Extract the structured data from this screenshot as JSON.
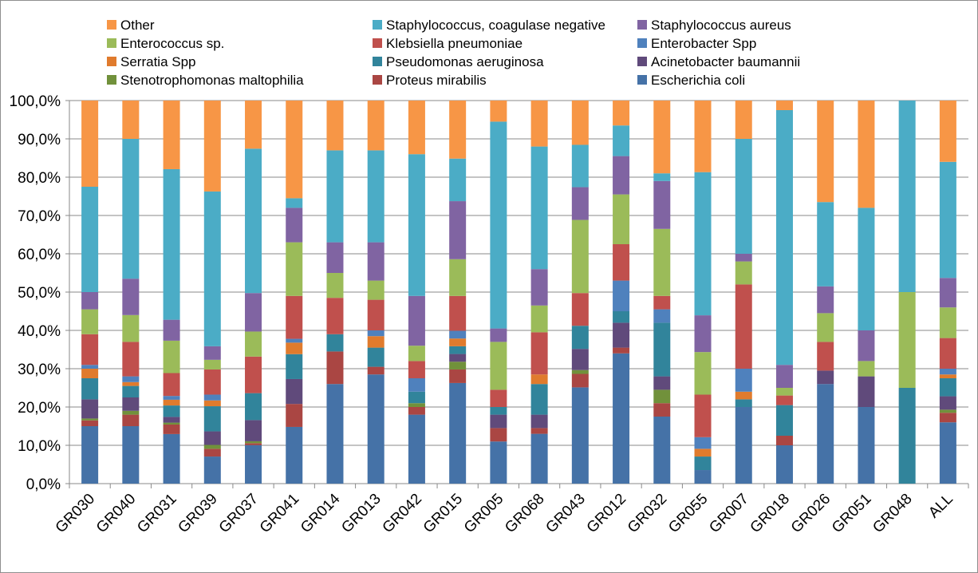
{
  "chart_data": {
    "type": "bar",
    "stacked": true,
    "percent": true,
    "title": "",
    "xlabel": "",
    "ylabel": "",
    "ylim": [
      0,
      100
    ],
    "y_ticks": [
      "0,0%",
      "10,0%",
      "20,0%",
      "30,0%",
      "40,0%",
      "50,0%",
      "60,0%",
      "70,0%",
      "80,0%",
      "90,0%",
      "100,0%"
    ],
    "grid": "horizontal",
    "legend_position": "top",
    "categories": [
      "GR030",
      "GR040",
      "GR031",
      "GR039",
      "GR037",
      "GR041",
      "GR014",
      "GR013",
      "GR042",
      "GR015",
      "GR005",
      "GR068",
      "GR043",
      "GR012",
      "GR032",
      "GR055",
      "GR007",
      "GR018",
      "GR026",
      "GR051",
      "GR048",
      "ALL"
    ],
    "legend_order": [
      "Other",
      "Staphylococcus, coagulase negative",
      "Staphylococcus aureus",
      "Enterococcus sp.",
      "Klebsiella pneumoniae",
      "Enterobacter Spp",
      "Serratia Spp",
      "Pseudomonas aeruginosa",
      "Acinetobacter baumannii",
      "Stenotrophomonas maltophilia",
      "Proteus mirabilis",
      "Escherichia coli"
    ],
    "series": [
      {
        "name": "Escherichia coli",
        "color": "#4572A7",
        "values": [
          15.0,
          15.0,
          13.0,
          7.0,
          10.0,
          14.8,
          26.0,
          28.5,
          18.0,
          26.0,
          11.0,
          13.0,
          25.0,
          34.0,
          17.5,
          3.5,
          20.0,
          10.0,
          26.0,
          20.0,
          0,
          16.0
        ]
      },
      {
        "name": "Proteus mirabilis",
        "color": "#AA4643",
        "values": [
          1.5,
          3.0,
          2.5,
          2.0,
          0.5,
          6.0,
          8.5,
          2.0,
          2.0,
          3.5,
          3.5,
          1.5,
          3.5,
          1.5,
          3.5,
          0,
          0,
          2.5,
          0,
          0,
          0,
          2.5
        ]
      },
      {
        "name": "Stenotrophomonas maltophilia",
        "color": "#71913B",
        "values": [
          0.5,
          1.0,
          0.5,
          1.0,
          0.5,
          0,
          0,
          0,
          1.0,
          2.0,
          0,
          0,
          1.0,
          0,
          3.5,
          0,
          0,
          0,
          0,
          0,
          0,
          0.8
        ]
      },
      {
        "name": "Acinetobacter baumannii",
        "color": "#604A7B",
        "values": [
          5.0,
          3.5,
          1.5,
          3.5,
          5.5,
          6.5,
          0,
          0,
          0,
          2.0,
          3.5,
          3.5,
          5.5,
          6.5,
          3.5,
          0,
          0,
          0,
          3.5,
          8.0,
          0,
          3.5
        ]
      },
      {
        "name": "Pseudomonas aeruginosa",
        "color": "#31849B",
        "values": [
          5.5,
          3.0,
          3.0,
          6.5,
          7.0,
          6.5,
          4.5,
          5.0,
          3.0,
          2.0,
          2.0,
          8.0,
          6.0,
          3.0,
          14.0,
          3.5,
          2.0,
          8.0,
          0,
          0,
          25.0,
          4.7
        ]
      },
      {
        "name": "Serratia Spp",
        "color": "#E07B2D",
        "values": [
          2.5,
          1.0,
          1.5,
          1.5,
          0,
          3.0,
          0,
          3.0,
          0,
          2.0,
          0,
          2.5,
          0,
          0,
          0,
          2.0,
          2.0,
          0,
          0,
          0,
          0,
          1.0
        ]
      },
      {
        "name": "Enterobacter Spp",
        "color": "#4F81BD",
        "values": [
          1.0,
          1.5,
          1.0,
          1.5,
          0,
          1.0,
          0,
          1.5,
          3.5,
          2.0,
          0,
          0,
          0,
          8.0,
          3.5,
          3.0,
          6.0,
          0,
          0,
          0,
          0,
          1.5
        ]
      },
      {
        "name": "Klebsiella pneumoniae",
        "color": "#C0504D",
        "values": [
          8.0,
          9.0,
          6.0,
          6.5,
          9.5,
          11.2,
          9.5,
          8.0,
          4.5,
          9.0,
          4.5,
          11.0,
          8.5,
          9.5,
          3.5,
          11.0,
          22.0,
          2.5,
          7.5,
          0,
          0,
          8.0
        ]
      },
      {
        "name": "Enterococcus sp.",
        "color": "#9BBB59",
        "values": [
          6.5,
          7.0,
          8.5,
          2.5,
          6.5,
          14.0,
          6.5,
          5.0,
          4.0,
          9.5,
          12.5,
          7.0,
          19.0,
          13.0,
          17.5,
          11.0,
          6.0,
          2.0,
          7.5,
          4.0,
          25.0,
          8.0
        ]
      },
      {
        "name": "Staphylococcus aureus",
        "color": "#8064A2",
        "values": [
          4.5,
          9.5,
          5.5,
          3.5,
          10.0,
          9.0,
          8.0,
          10.0,
          13.0,
          15.0,
          3.5,
          9.5,
          8.5,
          10.0,
          12.5,
          9.5,
          2.0,
          6.0,
          7.0,
          8.0,
          0,
          7.7
        ]
      },
      {
        "name": "Staphylococcus, coagulase negative",
        "color": "#4BACC6",
        "values": [
          27.5,
          36.5,
          39.5,
          40.0,
          37.5,
          2.5,
          24.0,
          24.0,
          37.0,
          11.0,
          54.0,
          32.0,
          11.0,
          8.0,
          2.0,
          37.0,
          30.0,
          66.5,
          22.0,
          32.0,
          50.0,
          30.3
        ]
      },
      {
        "name": "Other",
        "color": "#F79646",
        "values": [
          22.5,
          10.0,
          18.0,
          23.5,
          12.5,
          25.5,
          13.0,
          13.0,
          14.0,
          15.0,
          5.5,
          12.0,
          11.5,
          6.5,
          19.0,
          18.5,
          10.0,
          2.5,
          26.5,
          28.0,
          0,
          16.0
        ]
      }
    ]
  }
}
